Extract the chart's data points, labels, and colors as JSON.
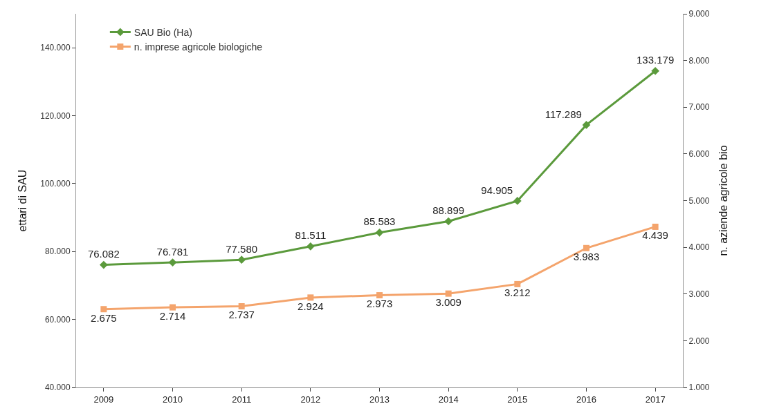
{
  "chart_data": {
    "type": "line",
    "ylabel": "ettari di SAU",
    "y2label": "n. aziende agricole bio",
    "categories": [
      "2009",
      "2010",
      "2011",
      "2012",
      "2013",
      "2014",
      "2015",
      "2016",
      "2017"
    ],
    "series": [
      {
        "name": "SAU Bio (Ha)",
        "color": "#5b9a3c",
        "marker": "diamond",
        "values": [
          76082,
          76781,
          77580,
          81511,
          85583,
          88899,
          94905,
          117289,
          133179
        ],
        "value_labels": [
          "76.082",
          "76.781",
          "77.580",
          "81.511",
          "85.583",
          "88.899",
          "94.905",
          "117.289",
          "133.179"
        ]
      },
      {
        "name": "n. imprese agricole biologiche",
        "color": "#f4a46c",
        "marker": "square",
        "axis": "y2",
        "values": [
          2675,
          2714,
          2737,
          2924,
          2973,
          3009,
          3212,
          3983,
          4439
        ],
        "value_labels": [
          "2.675",
          "2.714",
          "2.737",
          "2.924",
          "2.973",
          "3.009",
          "3.212",
          "3.983",
          "4.439"
        ]
      }
    ],
    "ylim": [
      40000,
      150000
    ],
    "yticks": [
      {
        "value": 40000,
        "label": "40.000"
      },
      {
        "value": 60000,
        "label": "60.000"
      },
      {
        "value": 80000,
        "label": "80.000"
      },
      {
        "value": 100000,
        "label": "100.000"
      },
      {
        "value": 120000,
        "label": "120.000"
      },
      {
        "value": 140000,
        "label": "140.000"
      }
    ],
    "y2lim": [
      1000,
      9000
    ],
    "y2ticks": [
      {
        "value": 1000,
        "label": "1.000"
      },
      {
        "value": 2000,
        "label": "2.000"
      },
      {
        "value": 3000,
        "label": "3.000"
      },
      {
        "value": 4000,
        "label": "4.000"
      },
      {
        "value": 5000,
        "label": "5.000"
      },
      {
        "value": 6000,
        "label": "6.000"
      },
      {
        "value": 7000,
        "label": "7.000"
      },
      {
        "value": 8000,
        "label": "8.000"
      },
      {
        "value": 9000,
        "label": "9.000"
      }
    ],
    "grid": false,
    "legend": "top left",
    "line_style": "solid"
  }
}
